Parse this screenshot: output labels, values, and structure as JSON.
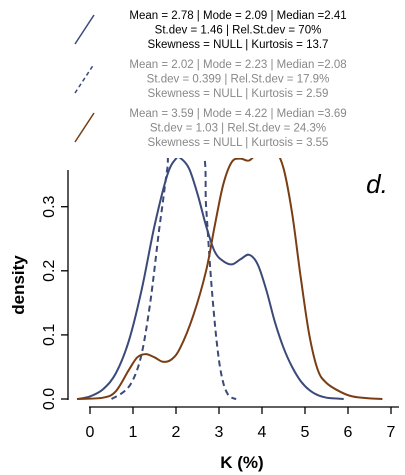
{
  "chart_data": {
    "type": "line",
    "panel_label": "d.",
    "xlabel": "K (%)",
    "ylabel": "density",
    "xlim": [
      -0.3,
      7.1
    ],
    "ylim": [
      -0.01,
      0.38
    ],
    "x_ticks": [
      "0",
      "1",
      "2",
      "3",
      "4",
      "5",
      "6",
      "7"
    ],
    "y_ticks": [
      "0.0",
      "0.1",
      "0.2",
      "0.3"
    ],
    "grid": false,
    "legend": [
      {
        "color": "#3b4a78",
        "dash": "solid",
        "lines": [
          "Mean = 2.78 | Mode = 2.09 | Median =2.41",
          "St.dev = 1.46 | Rel.St.dev = 70%",
          "Skewness = NULL | Kurtosis = 13.7"
        ],
        "text_color": "#000000"
      },
      {
        "color": "#3b4a78",
        "dash": "dashed",
        "lines": [
          "Mean = 2.02 | Mode = 2.23 | Median =2.08",
          "St.dev = 0.399 | Rel.St.dev = 17.9%",
          "Skewness = NULL | Kurtosis = 2.59"
        ],
        "text_color": "#888888"
      },
      {
        "color": "#7a3e14",
        "dash": "solid",
        "lines": [
          "Mean = 3.59 | Mode = 4.22 | Median =3.69",
          "St.dev = 1.03 | Rel.St.dev = 24.3%",
          "Skewness = NULL | Kurtosis = 3.55"
        ],
        "text_color": "#888888"
      }
    ],
    "series": [
      {
        "color": "#3b4a78",
        "dash": "solid",
        "x": [
          -0.3,
          0,
          0.3,
          0.6,
          0.9,
          1.2,
          1.5,
          1.8,
          2.0,
          2.1,
          2.3,
          2.5,
          2.7,
          2.9,
          3.1,
          3.3,
          3.5,
          3.7,
          3.9,
          4.1,
          4.3,
          4.5,
          4.7,
          4.9,
          5.1,
          5.3,
          5.5,
          5.7,
          5.9
        ],
        "y": [
          0.0,
          0.004,
          0.015,
          0.04,
          0.09,
          0.17,
          0.27,
          0.35,
          0.375,
          0.376,
          0.36,
          0.32,
          0.27,
          0.23,
          0.215,
          0.21,
          0.218,
          0.225,
          0.21,
          0.17,
          0.12,
          0.08,
          0.05,
          0.028,
          0.014,
          0.006,
          0.002,
          0.001,
          0.0
        ]
      },
      {
        "color": "#3b4a78",
        "dash": "dashed",
        "x": [
          0.5,
          0.8,
          1.0,
          1.2,
          1.4,
          1.6,
          1.7,
          1.8,
          1.9,
          2.6,
          2.7,
          2.8,
          2.9,
          3.0,
          3.1,
          3.2,
          3.3,
          3.4
        ],
        "y": [
          0.0,
          0.012,
          0.03,
          0.07,
          0.15,
          0.26,
          0.31,
          0.36,
          0.39,
          0.39,
          0.3,
          0.2,
          0.12,
          0.06,
          0.025,
          0.008,
          0.002,
          0.0
        ]
      },
      {
        "color": "#7a3e14",
        "dash": "solid",
        "x": [
          -0.3,
          0.3,
          0.6,
          0.9,
          1.1,
          1.3,
          1.5,
          1.7,
          1.9,
          2.1,
          2.4,
          2.7,
          2.9,
          3.1,
          3.3,
          3.5,
          3.7,
          3.9,
          4.1,
          4.3,
          4.5,
          4.7,
          4.9,
          5.1,
          5.3,
          5.5,
          5.8,
          6.1,
          6.5,
          6.8
        ],
        "y": [
          0.0,
          0.002,
          0.012,
          0.045,
          0.065,
          0.07,
          0.065,
          0.058,
          0.062,
          0.08,
          0.13,
          0.2,
          0.27,
          0.335,
          0.37,
          0.375,
          0.372,
          0.385,
          0.395,
          0.39,
          0.36,
          0.29,
          0.19,
          0.1,
          0.045,
          0.025,
          0.012,
          0.004,
          0.001,
          0.0
        ]
      }
    ]
  }
}
